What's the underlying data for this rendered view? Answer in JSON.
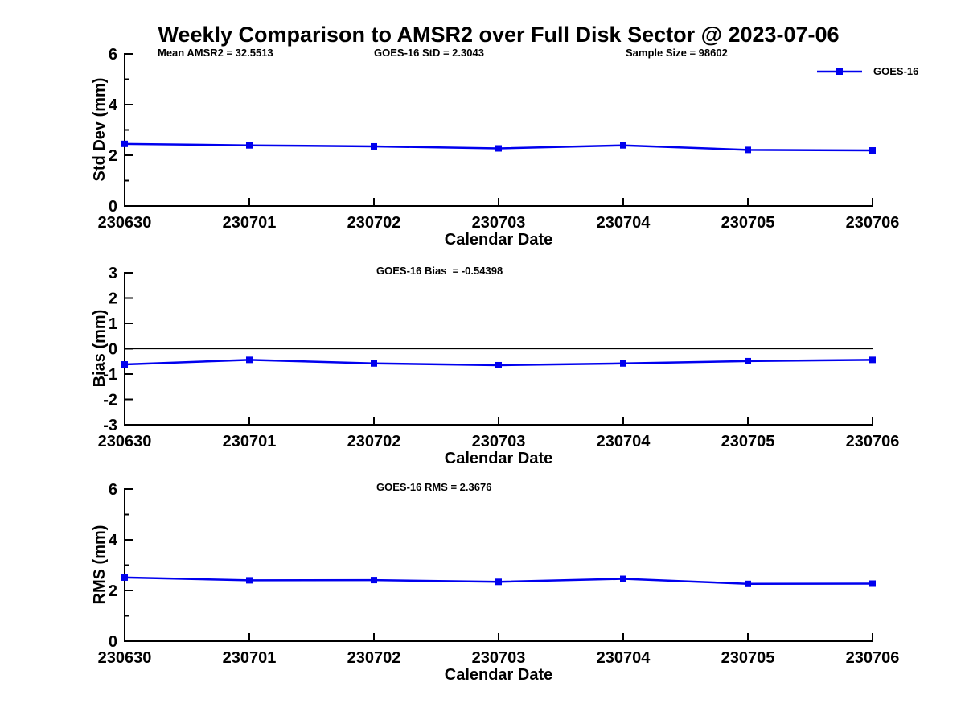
{
  "title": "Weekly Comparison to AMSR2 over Full Disk Sector @ 2023-07-06",
  "colors": {
    "series": "#0000EE",
    "axis": "#000000",
    "background": "#FFFFFF"
  },
  "chart_data": [
    {
      "type": "line",
      "name": "std-dev",
      "title": "",
      "annotations": [
        "Mean AMSR2 = 32.5513",
        "GOES-16 StD = 2.3043",
        "Sample Size = 98602"
      ],
      "categories": [
        "230630",
        "230701",
        "230702",
        "230703",
        "230704",
        "230705",
        "230706"
      ],
      "series": [
        {
          "name": "GOES-16",
          "color": "#0000EE",
          "values": [
            2.45,
            2.39,
            2.35,
            2.27,
            2.39,
            2.21,
            2.19
          ]
        }
      ],
      "xlabel": "Calendar Date",
      "ylabel": "Std Dev (mm)",
      "ylim": [
        0,
        6
      ],
      "yticks": [
        0,
        2,
        4,
        6
      ],
      "yticks_minor": [
        1,
        3,
        5
      ],
      "zero_line": false,
      "grid": false,
      "legend": {
        "show": true,
        "position": "top-right-outside"
      }
    },
    {
      "type": "line",
      "name": "bias",
      "title": "GOES-16 Bias  = -0.54398",
      "annotations": [],
      "categories": [
        "230630",
        "230701",
        "230702",
        "230703",
        "230704",
        "230705",
        "230706"
      ],
      "series": [
        {
          "name": "GOES-16",
          "color": "#0000EE",
          "values": [
            -0.62,
            -0.44,
            -0.58,
            -0.65,
            -0.58,
            -0.49,
            -0.44
          ]
        }
      ],
      "xlabel": "Calendar Date",
      "ylabel": "Bias (mm)",
      "ylim": [
        -3,
        3
      ],
      "yticks": [
        -3,
        -2,
        -1,
        0,
        1,
        2,
        3
      ],
      "yticks_minor": [],
      "zero_line": true,
      "grid": false,
      "legend": {
        "show": false
      }
    },
    {
      "type": "line",
      "name": "rms",
      "title": "GOES-16 RMS = 2.3676",
      "annotations": [],
      "categories": [
        "230630",
        "230701",
        "230702",
        "230703",
        "230704",
        "230705",
        "230706"
      ],
      "series": [
        {
          "name": "GOES-16",
          "color": "#0000EE",
          "values": [
            2.51,
            2.4,
            2.41,
            2.34,
            2.46,
            2.26,
            2.27
          ]
        }
      ],
      "xlabel": "Calendar Date",
      "ylabel": "RMS (mm)",
      "ylim": [
        0,
        6
      ],
      "yticks": [
        0,
        2,
        4,
        6
      ],
      "yticks_minor": [
        1,
        3,
        5
      ],
      "zero_line": false,
      "grid": false,
      "legend": {
        "show": false
      }
    }
  ]
}
